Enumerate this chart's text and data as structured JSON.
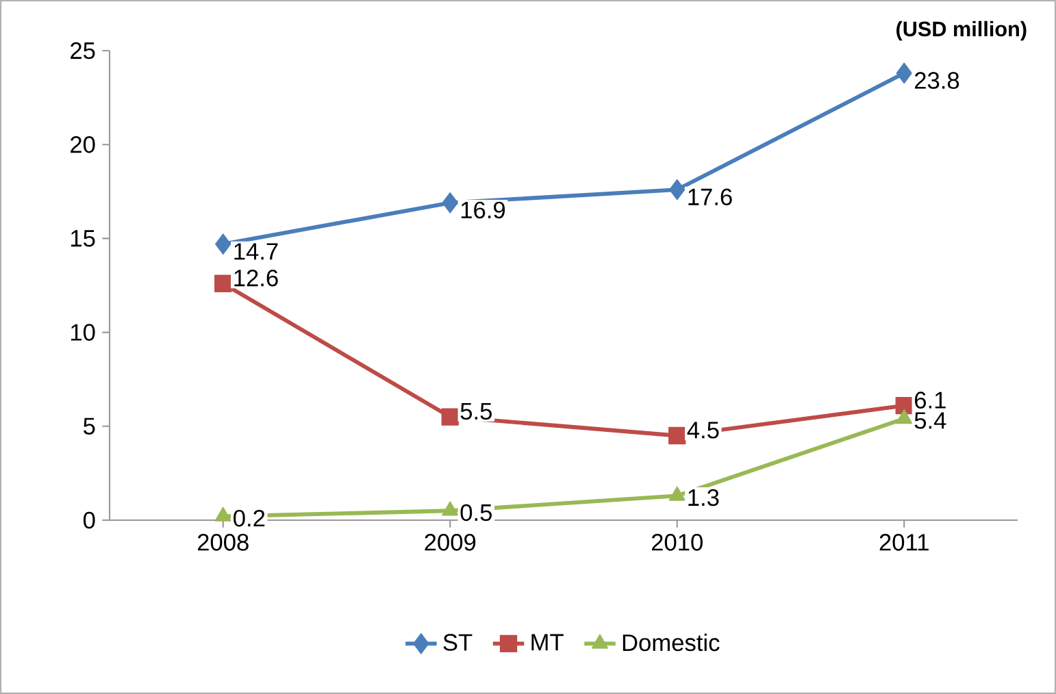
{
  "chart_data": {
    "type": "line",
    "ylabel": "(USD million)",
    "categories": [
      "2008",
      "2009",
      "2010",
      "2011"
    ],
    "series": [
      {
        "name": "ST",
        "color": "#4a7ebb",
        "marker": "diamond",
        "values": [
          14.7,
          16.9,
          17.6,
          23.8
        ]
      },
      {
        "name": "MT",
        "color": "#be4b48",
        "marker": "square",
        "values": [
          12.6,
          5.5,
          4.5,
          6.1
        ]
      },
      {
        "name": "Domestic",
        "color": "#98b954",
        "marker": "triangle",
        "values": [
          0.2,
          0.5,
          1.3,
          5.4
        ]
      }
    ],
    "ylim": [
      0,
      25
    ],
    "yticks": [
      0,
      5,
      10,
      15,
      20,
      25
    ],
    "data_labels": true,
    "legend": "bottom",
    "grid": false
  }
}
